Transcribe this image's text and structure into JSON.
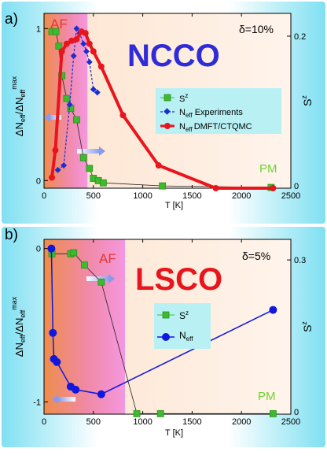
{
  "chart_data": [
    {
      "type": "line",
      "panel_label": "a)",
      "title_text": "NCCO",
      "delta_label": "δ=10%",
      "xlabel": "T [K]",
      "ylabel_left": "ΔN_eff/ΔN_eff^max",
      "ylabel_right": "S^z",
      "xlim": [
        0,
        2500
      ],
      "ylim_left": [
        -0.05,
        1.1
      ],
      "ylim_right": [
        0,
        0.23
      ],
      "x_ticks": [
        0,
        500,
        1000,
        1500,
        2000,
        2500
      ],
      "y_ticks_left": [
        0,
        1
      ],
      "y_ticks_right": [
        0.2
      ],
      "region_labels": {
        "af": "AF",
        "pm": "PM"
      },
      "af_boundary_T": 440,
      "legend": {
        "sz": "S",
        "neff_exp": "N",
        "neff_exp_suffix": "Experiments",
        "neff_dmft": "N",
        "neff_dmft_suffix": "DMFT/CTQMC",
        "sup": "z",
        "sub": "eff"
      },
      "series": [
        {
          "key": "sz",
          "axis": "right",
          "color": "#3dbb2c",
          "x": [
            80,
            120,
            150,
            180,
            230,
            270,
            330,
            400,
            460,
            500,
            550,
            600,
            1200,
            2300
          ],
          "y": [
            0.206,
            0.206,
            0.187,
            0.148,
            0.118,
            0.105,
            0.09,
            0.04,
            0.026,
            0.013,
            0.01,
            0.007,
            0.003,
            0.001
          ]
        },
        {
          "key": "neff_exp",
          "axis": "left",
          "color": "#1a2fd0",
          "x": [
            140,
            200,
            260,
            300,
            330,
            360,
            400,
            430,
            460,
            500,
            540
          ],
          "y": [
            0.07,
            0.1,
            0.5,
            0.82,
            1.0,
            0.97,
            0.9,
            0.85,
            0.78,
            0.6,
            0.58
          ]
        },
        {
          "key": "neff_dmft",
          "axis": "left",
          "color": "#e8151c",
          "x": [
            80,
            115,
            180,
            230,
            280,
            330,
            380,
            420,
            460,
            500,
            580,
            800,
            1160,
            1740,
            2320
          ],
          "y": [
            0.02,
            0.2,
            0.85,
            0.9,
            0.92,
            0.93,
            0.98,
            0.97,
            0.9,
            0.85,
            0.75,
            0.43,
            0.1,
            -0.05,
            -0.05
          ]
        }
      ]
    },
    {
      "type": "line",
      "panel_label": "b)",
      "title_text": "LSCO",
      "delta_label": "δ=5%",
      "xlabel": "T [K]",
      "ylabel_left": "ΔN_eff/ΔN_eff^max",
      "ylabel_right": "S^z",
      "xlim": [
        0,
        2500
      ],
      "ylim_left": [
        -1.08,
        0.06
      ],
      "ylim_right": [
        0,
        0.34
      ],
      "x_ticks": [
        0,
        500,
        1000,
        1500,
        2000,
        2500
      ],
      "y_ticks_left": [
        0,
        -1
      ],
      "y_ticks_right": [
        0.3
      ],
      "region_labels": {
        "af": "AF",
        "pm": "PM"
      },
      "af_boundary_T": 820,
      "legend": {
        "sz": "S",
        "neff": "N",
        "sup": "z",
        "sub": "eff"
      },
      "series": [
        {
          "key": "sz",
          "axis": "right",
          "color": "#3dbb2c",
          "x": [
            80,
            270,
            300,
            410,
            580,
            940,
            1180,
            2320
          ],
          "y": [
            0.312,
            0.312,
            0.314,
            0.29,
            0.257,
            0.001,
            0.001,
            0.001
          ]
        },
        {
          "key": "neff",
          "axis": "left",
          "color": "#1018dd",
          "x": [
            75,
            90,
            100,
            130,
            270,
            320,
            580,
            2320
          ],
          "y": [
            0.0,
            -0.55,
            -0.72,
            -0.74,
            -0.9,
            -0.92,
            -0.95,
            -0.4
          ]
        }
      ]
    }
  ]
}
